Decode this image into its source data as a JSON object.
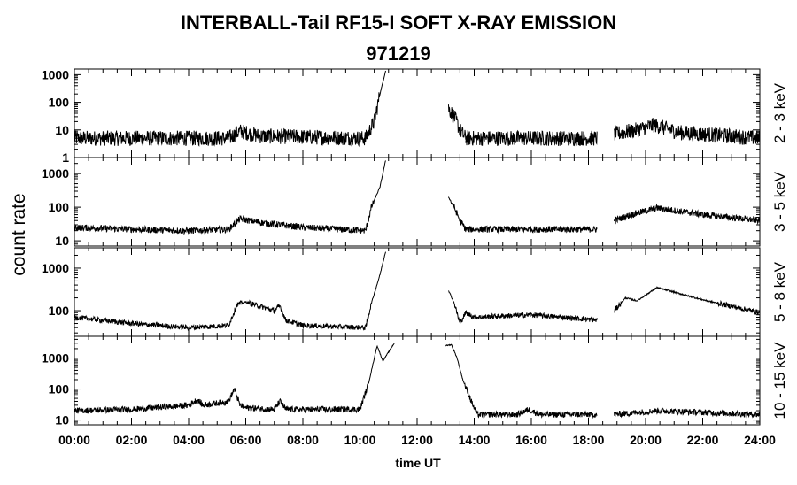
{
  "title": "INTERBALL-Tail RF15-I SOFT X-RAY EMISSION",
  "subtitle": "971219",
  "chart_data": {
    "type": "line",
    "ylabel": "count rate",
    "xlabel": "time UT",
    "x_unit": "hours UT",
    "x_tick_labels": [
      "00:00",
      "02:00",
      "04:00",
      "06:00",
      "08:00",
      "10:00",
      "12:00",
      "14:00",
      "16:00",
      "18:00",
      "20:00",
      "22:00",
      "24:00"
    ],
    "xlim": [
      0,
      24
    ],
    "yscale": "log",
    "grid": false,
    "panels": [
      {
        "name": "2 - 3 keV",
        "ylim": [
          1,
          1600
        ],
        "ytick_labels": [
          "1",
          "10",
          "100",
          "1000"
        ],
        "yticks": [
          1,
          10,
          100,
          1000
        ],
        "noise_factor": 1.9,
        "segments": [
          {
            "x": [
              0,
              5.4,
              5.8,
              6.5,
              10.2,
              10.5,
              10.7,
              10.9
            ],
            "y": [
              5,
              5,
              9,
              6,
              5,
              20,
              200,
              1400
            ]
          },
          {
            "x": [
              13.1,
              13.3,
              13.5,
              13.7
            ],
            "y": [
              60,
              30,
              10,
              5
            ]
          },
          {
            "x": [
              13.7,
              18.3
            ],
            "y": [
              5,
              5
            ]
          },
          {
            "x": [
              18.9,
              19.7,
              20.3,
              21.2,
              24
            ],
            "y": [
              7,
              10,
              15,
              8,
              5
            ]
          }
        ]
      },
      {
        "name": "3 - 5 keV",
        "ylim": [
          7,
          3000
        ],
        "ytick_labels": [
          "10",
          "100",
          "1000"
        ],
        "yticks": [
          10,
          100,
          1000
        ],
        "noise_factor": 1.25,
        "segments": [
          {
            "x": [
              0,
              2,
              4,
              5.4,
              5.8,
              6.5,
              8,
              10.2,
              10.4,
              10.7,
              10.9
            ],
            "y": [
              25,
              22,
              20,
              22,
              45,
              35,
              25,
              20,
              100,
              400,
              2500
            ]
          },
          {
            "x": [
              13.1,
              13.3,
              13.5,
              13.7
            ],
            "y": [
              200,
              100,
              40,
              22
            ]
          },
          {
            "x": [
              13.7,
              18.3
            ],
            "y": [
              22,
              22
            ]
          },
          {
            "x": [
              18.9,
              19.5,
              20.4,
              22,
              24
            ],
            "y": [
              40,
              60,
              95,
              60,
              40
            ]
          }
        ]
      },
      {
        "name": "5 - 8 keV",
        "ylim": [
          25,
          3000
        ],
        "ytick_labels": [
          "100",
          "1000"
        ],
        "yticks": [
          100,
          1000
        ],
        "noise_factor": 1.15,
        "segments": [
          {
            "x": [
              0,
              2,
              4,
              5.4,
              5.7,
              6,
              7,
              7.2,
              7.4,
              8,
              10.2,
              10.4,
              10.7,
              10.9
            ],
            "y": [
              70,
              50,
              40,
              45,
              140,
              160,
              100,
              130,
              60,
              45,
              40,
              150,
              700,
              2500
            ]
          },
          {
            "x": [
              13.1,
              13.3,
              13.5,
              13.7,
              14,
              16,
              18.3
            ],
            "y": [
              300,
              150,
              50,
              90,
              70,
              80,
              60
            ]
          },
          {
            "x": [
              18.9,
              19.3,
              19.7,
              20.4,
              22,
              24
            ],
            "y": [
              100,
              200,
              170,
              350,
              180,
              90
            ]
          }
        ]
      },
      {
        "name": "10 - 15 keV",
        "ylim": [
          7,
          5000
        ],
        "ytick_labels": [
          "10",
          "100",
          "1000"
        ],
        "yticks": [
          10,
          100,
          1000
        ],
        "noise_factor": 1.25,
        "segments": [
          {
            "x": [
              0,
              2,
              4,
              4.3,
              4.5,
              5.4,
              5.6,
              5.8,
              6,
              7,
              7.2,
              7.4,
              8,
              10,
              10.3,
              10.6,
              10.8,
              11.2
            ],
            "y": [
              20,
              22,
              30,
              45,
              30,
              40,
              100,
              30,
              25,
              22,
              40,
              22,
              22,
              22,
              150,
              2500,
              800,
              3000
            ]
          },
          {
            "x": [
              13,
              13.2,
              13.4,
              13.6,
              13.9,
              14.1,
              15.5,
              15.9,
              16.3,
              18.3
            ],
            "y": [
              2500,
              2700,
              1000,
              200,
              40,
              15,
              15,
              22,
              15,
              15
            ]
          },
          {
            "x": [
              18.9,
              20.4,
              24
            ],
            "y": [
              15,
              20,
              15
            ]
          }
        ]
      }
    ]
  }
}
